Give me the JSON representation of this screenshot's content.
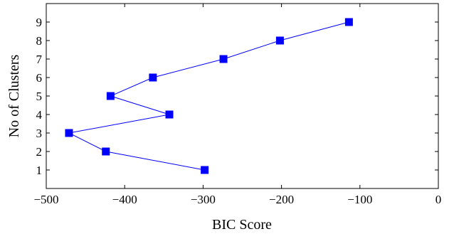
{
  "chart_data": {
    "type": "line",
    "title": "",
    "xlabel": "BIC Score",
    "ylabel": "No of Clusters",
    "xlim": [
      -500,
      0
    ],
    "ylim": [
      0,
      10
    ],
    "x_ticks": [
      -500,
      -400,
      -300,
      -200,
      -100,
      0
    ],
    "x_tick_labels": [
      "−500",
      "−400",
      "−300",
      "−200",
      "−100",
      "0"
    ],
    "y_ticks": [
      1,
      2,
      3,
      4,
      5,
      6,
      7,
      8,
      9
    ],
    "y_tick_labels": [
      "1",
      "2",
      "3",
      "4",
      "5",
      "6",
      "7",
      "8",
      "9"
    ],
    "grid": false,
    "series": [
      {
        "color": "#0000ff",
        "marker": "square",
        "points": [
          {
            "x": -298,
            "y": 1
          },
          {
            "x": -424,
            "y": 2
          },
          {
            "x": -471,
            "y": 3
          },
          {
            "x": -343,
            "y": 4
          },
          {
            "x": -418,
            "y": 5
          },
          {
            "x": -364,
            "y": 6
          },
          {
            "x": -274,
            "y": 7
          },
          {
            "x": -202,
            "y": 8
          },
          {
            "x": -114,
            "y": 9
          }
        ]
      }
    ]
  }
}
